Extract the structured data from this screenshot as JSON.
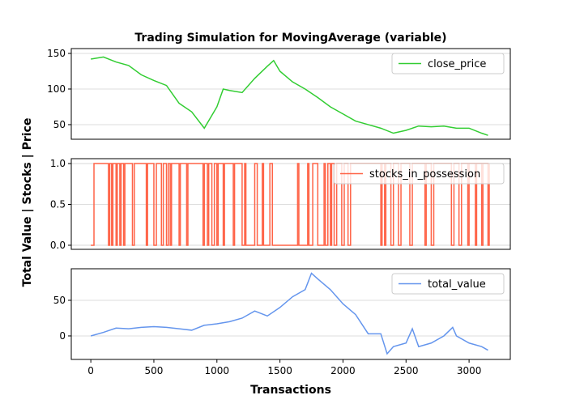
{
  "chart_data": [
    {
      "type": "line",
      "title": "Trading Simulation for MovingAverage (variable)",
      "x": [
        0,
        100,
        200,
        300,
        400,
        500,
        600,
        700,
        800,
        900,
        1000,
        1050,
        1100,
        1200,
        1300,
        1400,
        1450,
        1500,
        1600,
        1700,
        1800,
        1900,
        2000,
        2100,
        2200,
        2300,
        2400,
        2500,
        2600,
        2700,
        2800,
        2900,
        3000,
        3100,
        3150
      ],
      "series": [
        {
          "name": "close_price",
          "color": "#32cd32",
          "values": [
            142,
            145,
            138,
            133,
            120,
            112,
            105,
            80,
            68,
            45,
            75,
            100,
            98,
            95,
            115,
            132,
            140,
            125,
            110,
            100,
            88,
            75,
            65,
            55,
            50,
            45,
            38,
            42,
            48,
            47,
            48,
            45,
            45,
            38,
            35
          ]
        }
      ],
      "xlim": [
        -155,
        3327
      ],
      "ylim": [
        29.5,
        156.8
      ],
      "yticks": [
        50,
        100,
        150
      ],
      "grid": true,
      "legend": "upper right"
    },
    {
      "type": "line",
      "drawstyle": "steps-post",
      "ylabel": "Total Value | Stocks | Price",
      "x": [
        0,
        25,
        140,
        150,
        165,
        175,
        200,
        210,
        230,
        240,
        260,
        270,
        330,
        345,
        440,
        450,
        500,
        520,
        560,
        575,
        600,
        615,
        630,
        640,
        700,
        710,
        760,
        770,
        890,
        900,
        925,
        935,
        960,
        980,
        1000,
        1010,
        1050,
        1060,
        1130,
        1140,
        1200,
        1220,
        1230,
        1300,
        1320,
        1360,
        1370,
        1420,
        1440,
        1640,
        1650,
        1720,
        1730,
        1760,
        1800,
        1850,
        1860,
        1880,
        1900,
        1910,
        1930,
        1950,
        1990,
        2010,
        2040,
        2060,
        2300,
        2310,
        2330,
        2340,
        2380,
        2400,
        2440,
        2460,
        2530,
        2550,
        2650,
        2660,
        2700,
        2720,
        2860,
        2880,
        2920,
        2940,
        2990,
        3000,
        3050,
        3060,
        3100,
        3110,
        3150,
        3160
      ],
      "series": [
        {
          "name": "stocks_in_possession",
          "color": "#ff6347",
          "values": [
            0,
            1,
            0,
            1,
            0,
            1,
            0,
            1,
            0,
            1,
            0,
            1,
            0,
            1,
            0,
            1,
            0,
            1,
            0,
            1,
            0,
            1,
            0,
            1,
            0,
            1,
            0,
            1,
            0,
            1,
            0,
            1,
            0,
            1,
            0,
            1,
            0,
            1,
            0,
            1,
            0,
            1,
            0,
            1,
            0,
            1,
            0,
            1,
            0,
            1,
            0,
            1,
            0,
            1,
            0,
            1,
            0,
            1,
            0,
            1,
            0,
            1,
            0,
            1,
            0,
            1,
            0,
            1,
            0,
            1,
            0,
            1,
            0,
            1,
            0,
            1,
            0,
            1,
            0,
            1,
            0,
            1,
            0,
            1,
            0,
            1,
            0,
            1,
            0,
            1,
            0,
            1
          ]
        }
      ],
      "xlim": [
        -155,
        3327
      ],
      "ylim": [
        -0.05,
        1.06
      ],
      "yticks": [
        {
          "value": 0,
          "label": "0.0"
        },
        0.5,
        {
          "value": 1,
          "label": "1.0"
        }
      ],
      "grid": true,
      "legend": "upper right"
    },
    {
      "type": "line",
      "xlabel": "Transactions",
      "x": [
        0,
        100,
        200,
        300,
        400,
        500,
        600,
        700,
        800,
        900,
        1000,
        1100,
        1200,
        1300,
        1400,
        1500,
        1600,
        1700,
        1750,
        1800,
        1900,
        2000,
        2100,
        2200,
        2300,
        2350,
        2400,
        2500,
        2550,
        2600,
        2700,
        2800,
        2870,
        2900,
        3000,
        3100,
        3150
      ],
      "series": [
        {
          "name": "total_value",
          "color": "#6495ed",
          "values": [
            0,
            5,
            11,
            10,
            12,
            13,
            12,
            10,
            8,
            15,
            17,
            20,
            25,
            35,
            28,
            40,
            55,
            65,
            88,
            80,
            65,
            45,
            30,
            3,
            3,
            -25,
            -15,
            -10,
            10,
            -15,
            -10,
            0,
            12,
            0,
            -10,
            -15,
            -20
          ]
        }
      ],
      "xlim": [
        -155,
        3327
      ],
      "ylim": [
        -33,
        94.3
      ],
      "yticks": [
        0,
        50
      ],
      "xticks": [
        0,
        500,
        1000,
        1500,
        2000,
        2500,
        3000
      ],
      "grid": true,
      "legend": "upper right"
    }
  ]
}
